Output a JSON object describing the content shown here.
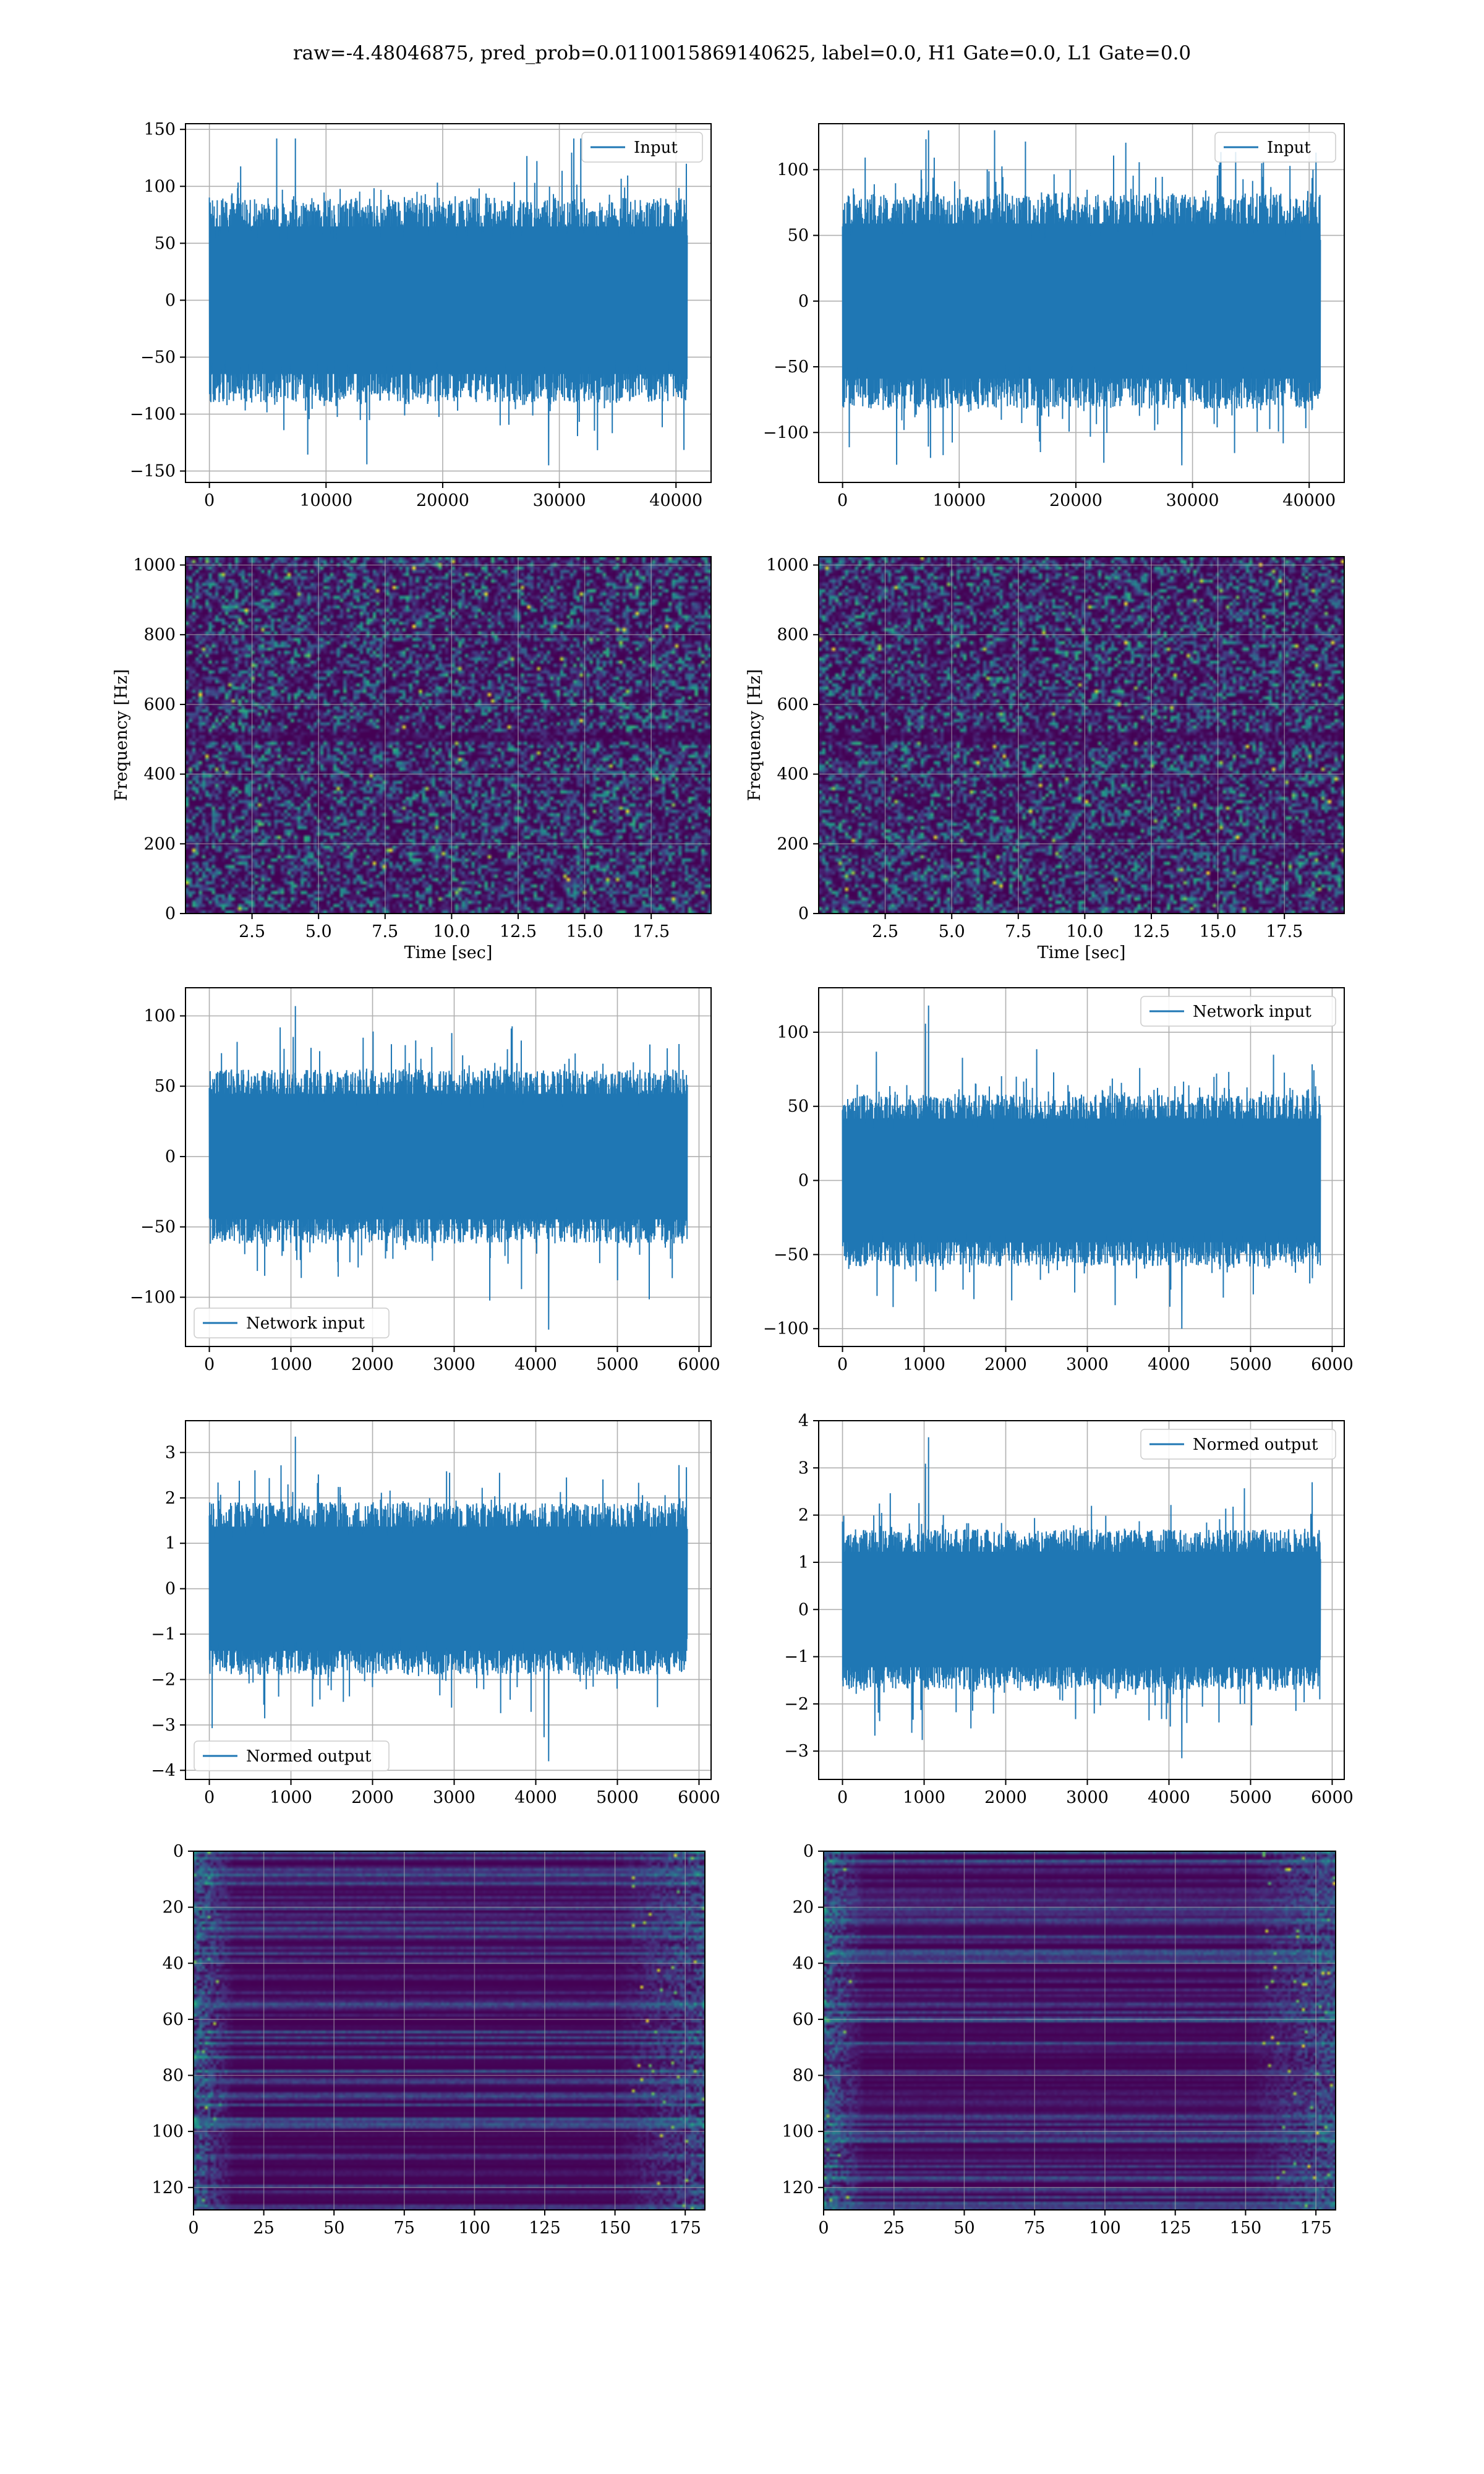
{
  "figure": {
    "suptitle": "raw=-4.48046875, pred_prob=0.0110015869140625, label=0.0, H1 Gate=0.0, L1 Gate=0.0"
  },
  "colors": {
    "line": "#1f77b4",
    "grid": "#b0b0b0",
    "viridis_low": "#440154",
    "viridis_mid": "#21918c",
    "viridis_high": "#fde725"
  },
  "chart_data": [
    {
      "id": "h1-input",
      "type": "line",
      "panel_row": 1,
      "panel_col": 1,
      "series": [
        {
          "name": "Input",
          "x_max": 40960,
          "envelope_abs": 90,
          "peak_max": 142,
          "peak_min": -145
        }
      ],
      "legend": "upper right",
      "xlim": [
        -2048,
        43008
      ],
      "ylim": [
        -160,
        155
      ],
      "xticks": [
        0,
        10000,
        20000,
        30000,
        40000
      ],
      "yticks": [
        -150,
        -100,
        -50,
        0,
        50,
        100,
        150
      ],
      "xlabel": "",
      "ylabel": "",
      "grid": true
    },
    {
      "id": "l1-input",
      "type": "line",
      "panel_row": 1,
      "panel_col": 2,
      "series": [
        {
          "name": "Input",
          "x_max": 40960,
          "envelope_abs": 82,
          "peak_max": 130,
          "peak_min": -125
        }
      ],
      "legend": "upper right",
      "xlim": [
        -2048,
        43008
      ],
      "ylim": [
        -138,
        135
      ],
      "xticks": [
        0,
        10000,
        20000,
        30000,
        40000
      ],
      "yticks": [
        -100,
        -50,
        0,
        50,
        100
      ],
      "xlabel": "",
      "ylabel": "",
      "grid": true
    },
    {
      "id": "h1-spectrogram",
      "type": "heatmap",
      "panel_row": 2,
      "panel_col": 1,
      "xlim": [
        0,
        19.75
      ],
      "ylim": [
        0,
        1024
      ],
      "xticks": [
        2.5,
        5.0,
        7.5,
        10.0,
        12.5,
        15.0,
        17.5
      ],
      "xtick_labels": [
        "2.5",
        "5.0",
        "7.5",
        "10.0",
        "12.5",
        "15.0",
        "17.5"
      ],
      "yticks": [
        0,
        200,
        400,
        600,
        800,
        1000
      ],
      "xlabel": "Time [sec]",
      "ylabel": "Frequency [Hz]",
      "grid": true,
      "colormap": "viridis"
    },
    {
      "id": "l1-spectrogram",
      "type": "heatmap",
      "panel_row": 2,
      "panel_col": 2,
      "xlim": [
        0,
        19.75
      ],
      "ylim": [
        0,
        1024
      ],
      "xticks": [
        2.5,
        5.0,
        7.5,
        10.0,
        12.5,
        15.0,
        17.5
      ],
      "xtick_labels": [
        "2.5",
        "5.0",
        "7.5",
        "10.0",
        "12.5",
        "15.0",
        "17.5"
      ],
      "yticks": [
        0,
        200,
        400,
        600,
        800,
        1000
      ],
      "xlabel": "Time [sec]",
      "ylabel": "Frequency [Hz]",
      "grid": true,
      "colormap": "viridis"
    },
    {
      "id": "h1-network-input",
      "type": "line",
      "panel_row": 3,
      "panel_col": 1,
      "series": [
        {
          "name": "Network input",
          "x_max": 5856,
          "envelope_abs": 62,
          "peak_max": 107,
          "peak_min": -123
        }
      ],
      "legend": "lower left",
      "xlim": [
        -292,
        6148
      ],
      "ylim": [
        -135,
        120
      ],
      "xticks": [
        0,
        1000,
        2000,
        3000,
        4000,
        5000,
        6000
      ],
      "yticks": [
        -100,
        -50,
        0,
        50,
        100
      ],
      "xlabel": "",
      "ylabel": "",
      "grid": true
    },
    {
      "id": "l1-network-input",
      "type": "line",
      "panel_row": 3,
      "panel_col": 2,
      "series": [
        {
          "name": "Network input",
          "x_max": 5856,
          "envelope_abs": 58,
          "peak_max": 118,
          "peak_min": -100
        }
      ],
      "legend": "upper right",
      "xlim": [
        -292,
        6148
      ],
      "ylim": [
        -112,
        130
      ],
      "xticks": [
        0,
        1000,
        2000,
        3000,
        4000,
        5000,
        6000
      ],
      "yticks": [
        -100,
        -50,
        0,
        50,
        100
      ],
      "xlabel": "",
      "ylabel": "",
      "grid": true
    },
    {
      "id": "h1-normed-output",
      "type": "line",
      "panel_row": 4,
      "panel_col": 1,
      "series": [
        {
          "name": "Normed output",
          "x_max": 5856,
          "envelope_abs": 1.9,
          "peak_max": 3.35,
          "peak_min": -3.8
        }
      ],
      "legend": "lower left",
      "xlim": [
        -292,
        6148
      ],
      "ylim": [
        -4.2,
        3.7
      ],
      "xticks": [
        0,
        1000,
        2000,
        3000,
        4000,
        5000,
        6000
      ],
      "yticks": [
        -4,
        -3,
        -2,
        -1,
        0,
        1,
        2,
        3
      ],
      "xlabel": "",
      "ylabel": "",
      "grid": true
    },
    {
      "id": "l1-normed-output",
      "type": "line",
      "panel_row": 4,
      "panel_col": 2,
      "series": [
        {
          "name": "Normed output",
          "x_max": 5856,
          "envelope_abs": 1.7,
          "peak_max": 3.65,
          "peak_min": -3.15
        }
      ],
      "legend": "upper right",
      "xlim": [
        -292,
        6148
      ],
      "ylim": [
        -3.6,
        4.0
      ],
      "xticks": [
        0,
        1000,
        2000,
        3000,
        4000,
        5000,
        6000
      ],
      "yticks": [
        -3,
        -2,
        -1,
        0,
        1,
        2,
        3,
        4
      ],
      "xlabel": "",
      "ylabel": "",
      "grid": true
    },
    {
      "id": "h1-feature-map",
      "type": "heatmap",
      "panel_row": 5,
      "panel_col": 1,
      "xlim": [
        0,
        182
      ],
      "ylim": [
        128,
        0
      ],
      "xticks": [
        0,
        25,
        50,
        75,
        100,
        125,
        150,
        175
      ],
      "yticks": [
        0,
        20,
        40,
        60,
        80,
        100,
        120
      ],
      "xlabel": "",
      "ylabel": "",
      "grid": true,
      "colormap": "viridis"
    },
    {
      "id": "l1-feature-map",
      "type": "heatmap",
      "panel_row": 5,
      "panel_col": 2,
      "xlim": [
        0,
        182
      ],
      "ylim": [
        128,
        0
      ],
      "xticks": [
        0,
        25,
        50,
        75,
        100,
        125,
        150,
        175
      ],
      "yticks": [
        0,
        20,
        40,
        60,
        80,
        100,
        120
      ],
      "xlabel": "",
      "ylabel": "",
      "grid": true,
      "colormap": "viridis"
    }
  ]
}
